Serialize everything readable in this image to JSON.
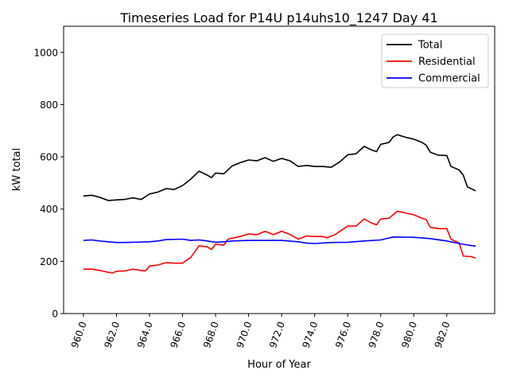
{
  "chart_data": {
    "type": "line",
    "title": "Timeseries Load for P14U p14uhs10_1247  Day 41",
    "xlabel": "Hour of Year",
    "ylabel": "kW total",
    "xlim": [
      958.8,
      984.9
    ],
    "ylim": [
      0,
      1100
    ],
    "xticks": [
      960,
      962,
      964,
      966,
      968,
      970,
      972,
      974,
      976,
      978,
      980,
      982
    ],
    "xtick_labels": [
      "960.0",
      "962.0",
      "964.0",
      "966.0",
      "968.0",
      "970.0",
      "972.0",
      "974.0",
      "976.0",
      "978.0",
      "980.0",
      "982.0"
    ],
    "yticks": [
      0,
      200,
      400,
      600,
      800,
      1000
    ],
    "ytick_labels": [
      "0",
      "200",
      "400",
      "600",
      "800",
      "1000"
    ],
    "grid": false,
    "legend_position": "top-right",
    "series": [
      {
        "name": "Total",
        "color": "#000000",
        "x": [
          960,
          960.5,
          961,
          961.5,
          962,
          962.5,
          963,
          963.5,
          964,
          964.5,
          965,
          965.5,
          966,
          966.5,
          967,
          967.5,
          967.75,
          968,
          968.5,
          969,
          969.5,
          970,
          970.5,
          971,
          971.5,
          972,
          972.5,
          973,
          973.5,
          974,
          974.5,
          975,
          975.5,
          976,
          976.5,
          977,
          977.5,
          977.75,
          978,
          978.5,
          978.75,
          979,
          979.5,
          980,
          980.5,
          980.75,
          981,
          981.5,
          982,
          982.25,
          982.75,
          983,
          983.25,
          983.75
        ],
        "values": [
          450,
          453,
          445,
          433,
          435,
          437,
          443,
          437,
          458,
          465,
          478,
          475,
          490,
          515,
          545,
          530,
          520,
          538,
          535,
          565,
          578,
          588,
          585,
          597,
          583,
          594,
          585,
          563,
          567,
          563,
          563,
          560,
          580,
          608,
          612,
          640,
          625,
          620,
          648,
          655,
          676,
          685,
          675,
          668,
          655,
          645,
          618,
          606,
          605,
          563,
          550,
          530,
          485,
          470
        ]
      },
      {
        "name": "Residential",
        "color": "#ff0000",
        "x": [
          960,
          960.5,
          961,
          961.5,
          961.75,
          962,
          962.5,
          963,
          963.5,
          963.75,
          964,
          964.5,
          965,
          965.5,
          966,
          966.5,
          967,
          967.5,
          967.75,
          968,
          968.5,
          968.75,
          969.5,
          970,
          970.5,
          971,
          971.5,
          972,
          972.5,
          973,
          973.5,
          974,
          974.5,
          974.75,
          975.25,
          976,
          976.5,
          977,
          977.5,
          977.75,
          978,
          978.5,
          979,
          979.5,
          980,
          980.5,
          980.75,
          981,
          981.5,
          982,
          982.25,
          982.75,
          983,
          983.5,
          983.75
        ],
        "values": [
          170,
          170,
          165,
          158,
          155,
          162,
          163,
          170,
          165,
          163,
          182,
          186,
          195,
          193,
          193,
          215,
          260,
          255,
          245,
          265,
          262,
          285,
          295,
          305,
          302,
          315,
          302,
          315,
          303,
          285,
          297,
          295,
          295,
          290,
          303,
          335,
          335,
          362,
          345,
          340,
          362,
          365,
          392,
          385,
          378,
          365,
          360,
          330,
          325,
          325,
          285,
          270,
          220,
          218,
          212
        ]
      },
      {
        "name": "Commercial",
        "color": "#0000ff",
        "x": [
          960,
          960.5,
          961,
          961.5,
          962,
          962.5,
          963,
          964,
          964.5,
          965,
          966,
          966.5,
          967,
          967.5,
          968,
          968.5,
          969,
          970,
          972,
          973,
          973.5,
          974,
          975,
          976,
          977,
          978,
          978.75,
          980,
          981,
          982,
          983,
          983.75
        ],
        "values": [
          280,
          282,
          278,
          275,
          272,
          272,
          273,
          275,
          278,
          283,
          285,
          280,
          282,
          278,
          273,
          275,
          278,
          280,
          280,
          275,
          270,
          268,
          272,
          273,
          278,
          282,
          293,
          292,
          287,
          278,
          265,
          258
        ]
      }
    ]
  }
}
